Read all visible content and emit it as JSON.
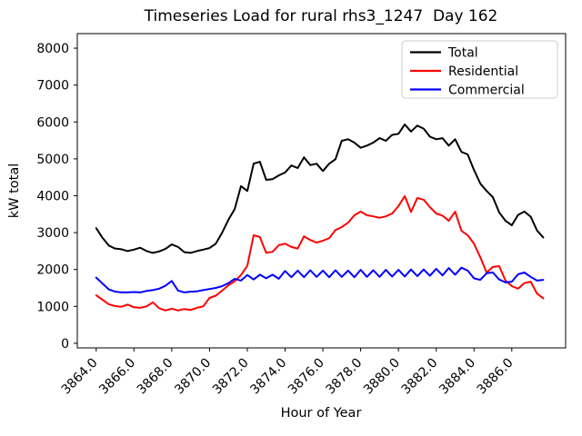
{
  "figure": {
    "background": "#ffffff",
    "spine_color": "#000000"
  },
  "chart_data": {
    "type": "line",
    "title": "Timeseries Load for rural rhs3_1247  Day 162",
    "xlabel": "Hour of Year",
    "ylabel": "kW total",
    "grid": false,
    "legend_position": "upper right",
    "legend_border_color": "#cccccc",
    "x_tick_rotation": 45,
    "xlim": [
      3863.0,
      3888.85
    ],
    "ylim": [
      -125,
      8395
    ],
    "x_ticks": [
      3864,
      3866,
      3868,
      3870,
      3872,
      3874,
      3876,
      3878,
      3880,
      3882,
      3884,
      3886
    ],
    "x_tick_labels": [
      "3864.0",
      "3866.0",
      "3868.0",
      "3870.0",
      "3872.0",
      "3874.0",
      "3876.0",
      "3878.0",
      "3880.0",
      "3882.0",
      "3884.0",
      "3886.0"
    ],
    "y_ticks": [
      0,
      1000,
      2000,
      3000,
      4000,
      5000,
      6000,
      7000,
      8000
    ],
    "y_tick_labels": [
      "0",
      "1000",
      "2000",
      "3000",
      "4000",
      "5000",
      "6000",
      "7000",
      "8000"
    ],
    "x_start": 3864.0,
    "x_step": 0.3333333,
    "series": [
      {
        "name": "Total",
        "color": "#000000",
        "values": [
          3120,
          2860,
          2650,
          2570,
          2550,
          2500,
          2540,
          2590,
          2500,
          2450,
          2490,
          2560,
          2680,
          2610,
          2470,
          2450,
          2500,
          2540,
          2580,
          2700,
          3000,
          3350,
          3640,
          4260,
          4130,
          4870,
          4920,
          4430,
          4450,
          4550,
          4630,
          4820,
          4750,
          5040,
          4830,
          4870,
          4670,
          4870,
          4990,
          5490,
          5530,
          5440,
          5300,
          5360,
          5440,
          5560,
          5490,
          5650,
          5680,
          5930,
          5740,
          5900,
          5820,
          5600,
          5530,
          5560,
          5360,
          5530,
          5190,
          5120,
          4700,
          4330,
          4130,
          3960,
          3550,
          3320,
          3200,
          3480,
          3570,
          3430,
          3060,
          2870
        ]
      },
      {
        "name": "Residential",
        "color": "#ff0000",
        "values": [
          1300,
          1180,
          1060,
          1010,
          990,
          1050,
          975,
          960,
          1000,
          1110,
          950,
          890,
          940,
          890,
          930,
          905,
          960,
          1000,
          1230,
          1290,
          1430,
          1575,
          1680,
          1850,
          2100,
          2930,
          2880,
          2450,
          2480,
          2660,
          2700,
          2610,
          2570,
          2900,
          2800,
          2730,
          2780,
          2850,
          3070,
          3150,
          3270,
          3470,
          3570,
          3470,
          3440,
          3400,
          3440,
          3520,
          3720,
          3990,
          3560,
          3940,
          3890,
          3690,
          3520,
          3460,
          3320,
          3570,
          3050,
          2930,
          2700,
          2330,
          1920,
          2070,
          2090,
          1700,
          1550,
          1480,
          1630,
          1670,
          1350,
          1220
        ]
      },
      {
        "name": "Commercial",
        "color": "#0000ff",
        "values": [
          1780,
          1620,
          1460,
          1400,
          1380,
          1380,
          1390,
          1380,
          1420,
          1440,
          1480,
          1560,
          1690,
          1430,
          1380,
          1400,
          1410,
          1440,
          1470,
          1500,
          1550,
          1630,
          1750,
          1700,
          1850,
          1730,
          1860,
          1760,
          1860,
          1750,
          1960,
          1790,
          1970,
          1790,
          1980,
          1800,
          1970,
          1790,
          1980,
          1800,
          1970,
          1790,
          1990,
          1800,
          1980,
          1800,
          1990,
          1810,
          1990,
          1810,
          2000,
          1820,
          2000,
          1830,
          2020,
          1840,
          2040,
          1860,
          2050,
          1970,
          1760,
          1720,
          1900,
          1920,
          1730,
          1650,
          1670,
          1870,
          1920,
          1800,
          1700,
          1720
        ]
      }
    ]
  }
}
